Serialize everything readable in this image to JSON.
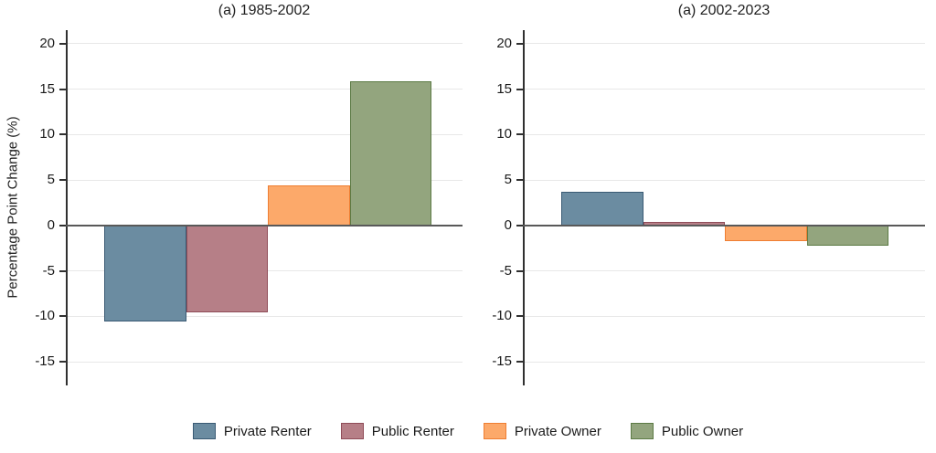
{
  "figure": {
    "ylabel": "Percentage Point Change (%)",
    "background": "#ffffff"
  },
  "chart_data": [
    {
      "type": "bar",
      "title": "(a) 1985-2002",
      "categories": [
        "Private Renter",
        "Public Renter",
        "Private Owner",
        "Public Owner"
      ],
      "values": [
        -10.6,
        -9.6,
        4.4,
        15.9
      ],
      "ylabel": "Percentage Point Change (%)",
      "yticks": [
        20,
        15,
        10,
        5,
        0,
        -5,
        -10,
        -15
      ],
      "ylim": [
        -17.6,
        21.5
      ],
      "grid": true,
      "legend_position": "bottom"
    },
    {
      "type": "bar",
      "title": "(a) 2002-2023",
      "categories": [
        "Private Renter",
        "Public Renter",
        "Private Owner",
        "Public Owner"
      ],
      "values": [
        3.7,
        0.4,
        -1.7,
        -2.2
      ],
      "ylabel": "Percentage Point Change (%)",
      "yticks": [
        20,
        15,
        10,
        5,
        0,
        -5,
        -10,
        -15
      ],
      "ylim": [
        -17.6,
        21.5
      ],
      "grid": true,
      "legend_position": "bottom"
    }
  ],
  "legend": {
    "items": [
      {
        "label": "Private Renter",
        "fill": "#6b8ca1",
        "border": "#3a5a74"
      },
      {
        "label": "Public Renter",
        "fill": "#b67f87",
        "border": "#8f4c58"
      },
      {
        "label": "Private Owner",
        "fill": "#fca96a",
        "border": "#ef7e32"
      },
      {
        "label": "Public Owner",
        "fill": "#93a57e",
        "border": "#5c7b45"
      }
    ]
  },
  "style": {
    "grid_color": "#e8e8e8",
    "zero_line_color": "#595959",
    "axis_color": "#303030",
    "text_color": "#1a1a1a"
  }
}
